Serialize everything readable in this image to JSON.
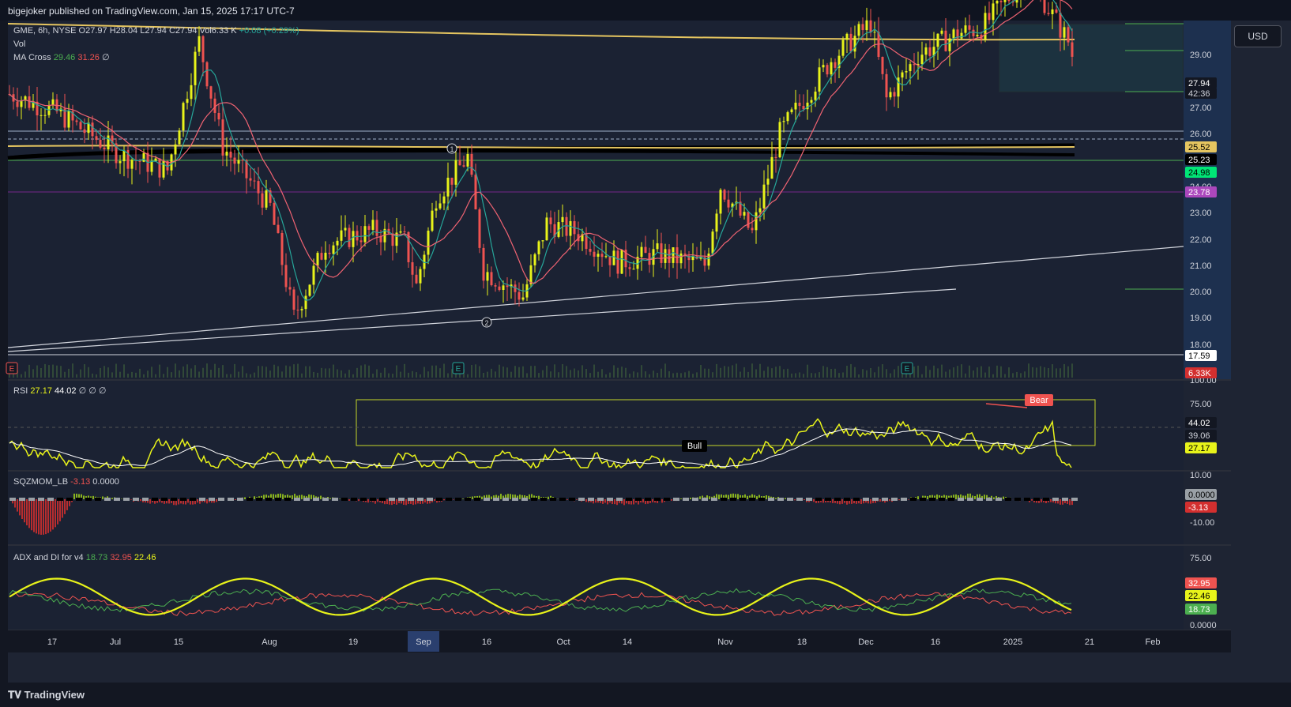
{
  "header": {
    "publisher_line": "bigejoker published on TradingView.com, Jan 15, 2025 17:17 UTC-7"
  },
  "symbol_legend": {
    "symbol": "GME, 6h, NYSE",
    "open": "O27.97",
    "high": "H28.04",
    "low": "L27.94",
    "close": "C27.94",
    "volume": "Vol6.33 K",
    "change": "+0.08 (+0.29%)",
    "vol_label": "Vol",
    "macross_label": "MA Cross",
    "macross_v1": "29.46",
    "macross_v2": "31.26",
    "macross_v3": "∅"
  },
  "currency_button": "USD",
  "price_axis": {
    "ticks": [
      "29.00",
      "27.00",
      "26.00",
      "24.00",
      "23.00",
      "22.00",
      "21.00",
      "20.00",
      "19.00",
      "18.00"
    ],
    "tags": {
      "last_price": "27.94",
      "countdown": "42:36",
      "ma_yellow": "25.52",
      "ma_black": "25.23",
      "green_line": "24.98",
      "purple_line": "23.78",
      "white_line": "17.59",
      "volume": "6.33K"
    },
    "vol_axis_top": "100.00"
  },
  "rsi_panel": {
    "label": "RSI",
    "v1": "27.17",
    "v2": "44.02",
    "v3": "∅ ∅ ∅",
    "axis": [
      "75.00",
      "10.00"
    ],
    "tags": {
      "ma": "44.02",
      "mid": "39.06",
      "rsi": "27.17"
    },
    "bull_label": "Bull",
    "bear_label": "Bear"
  },
  "sqz_panel": {
    "label": "SQZMOM_LB",
    "v1": "-3.13",
    "v2": "0.0000",
    "axis": [
      "-10.00"
    ],
    "tags": {
      "zero": "0.0000",
      "value": "-3.13"
    }
  },
  "adx_panel": {
    "label": "ADX and DI for v4",
    "v1": "18.73",
    "v2": "32.95",
    "v3": "22.46",
    "axis": [
      "75.00",
      "0.0000"
    ],
    "tags": {
      "di_minus": "32.95",
      "adx": "22.46",
      "di_plus": "18.73"
    }
  },
  "time_axis": [
    "17",
    "Jul",
    "15",
    "Aug",
    "19",
    "Sep",
    "16",
    "Oct",
    "14",
    "Nov",
    "18",
    "Dec",
    "16",
    "2025",
    "21",
    "Feb"
  ],
  "wave_labels": [
    "1",
    "2"
  ],
  "earnings_markers": [
    "E",
    "E",
    "E"
  ],
  "footer": {
    "brand": "TradingView"
  },
  "colors": {
    "bg": "#1e2433",
    "up": "#e8f31a",
    "down": "#ef5350",
    "ma_fast": "#26a69a",
    "ma_slow": "#f06372",
    "long_ma": "#e5c560",
    "rsi": "#e8f31a",
    "adx": "#e8f31a",
    "di_plus": "#4caf50",
    "di_minus": "#ef5350"
  }
}
